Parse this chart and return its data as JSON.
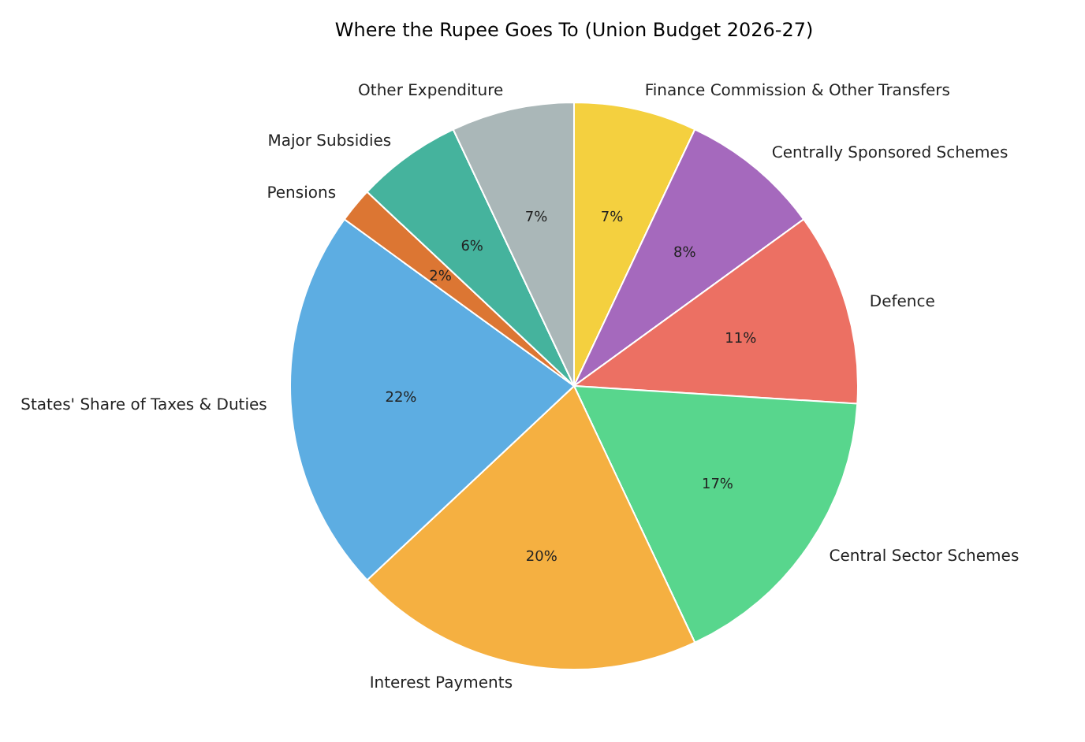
{
  "chart_data": {
    "type": "pie",
    "title": "Where the Rupee Goes To (Union Budget 2026-27)",
    "categories": [
      "Finance Commission & Other Transfers",
      "Centrally Sponsored Schemes",
      "Defence",
      "Central Sector Schemes",
      "Interest Payments",
      "States' Share of Taxes & Duties",
      "Pensions",
      "Major Subsidies",
      "Other Expenditure"
    ],
    "values": [
      7,
      8,
      11,
      17,
      20,
      22,
      2,
      6,
      7
    ],
    "value_labels": [
      "7%",
      "8%",
      "11%",
      "17%",
      "20%",
      "22%",
      "2%",
      "6%",
      "7%"
    ],
    "colors": [
      "#f4d03f",
      "#a569bd",
      "#ec7063",
      "#58d68d",
      "#f5b041",
      "#5dade2",
      "#dc7633",
      "#45b39d",
      "#aab7b8"
    ]
  }
}
